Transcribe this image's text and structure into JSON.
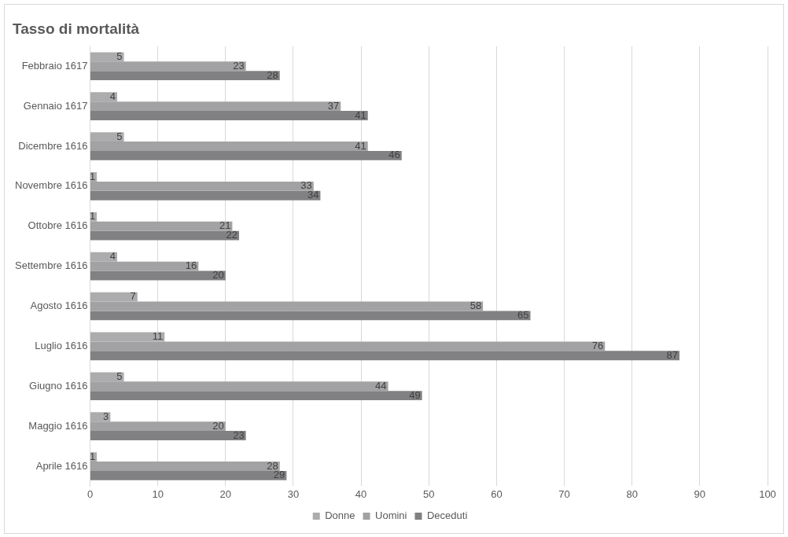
{
  "chart_data": {
    "type": "bar",
    "orientation": "horizontal",
    "title": "Tasso di mortalità",
    "categories": [
      "Febbraio 1617",
      "Gennaio 1617",
      "Dicembre 1616",
      "Novembre 1616",
      "Ottobre 1616",
      "Settembre 1616",
      "Agosto 1616",
      "Luglio 1616",
      "Giugno 1616",
      "Maggio 1616",
      "Aprile 1616"
    ],
    "series": [
      {
        "name": "Donne",
        "color": "#acacae",
        "values": [
          5,
          4,
          5,
          1,
          1,
          4,
          7,
          11,
          5,
          3,
          1
        ]
      },
      {
        "name": "Uomini",
        "color": "#a2a2a4",
        "values": [
          23,
          37,
          41,
          33,
          21,
          16,
          58,
          76,
          44,
          20,
          28
        ]
      },
      {
        "name": "Deceduti",
        "color": "#818183",
        "values": [
          28,
          41,
          46,
          34,
          22,
          20,
          65,
          87,
          49,
          23,
          29
        ]
      }
    ],
    "xlim": [
      0,
      100
    ],
    "xticks": [
      0,
      10,
      20,
      30,
      40,
      50,
      60,
      70,
      80,
      90,
      100
    ],
    "grid": "x",
    "legend": "bottom",
    "data_labels": true
  }
}
